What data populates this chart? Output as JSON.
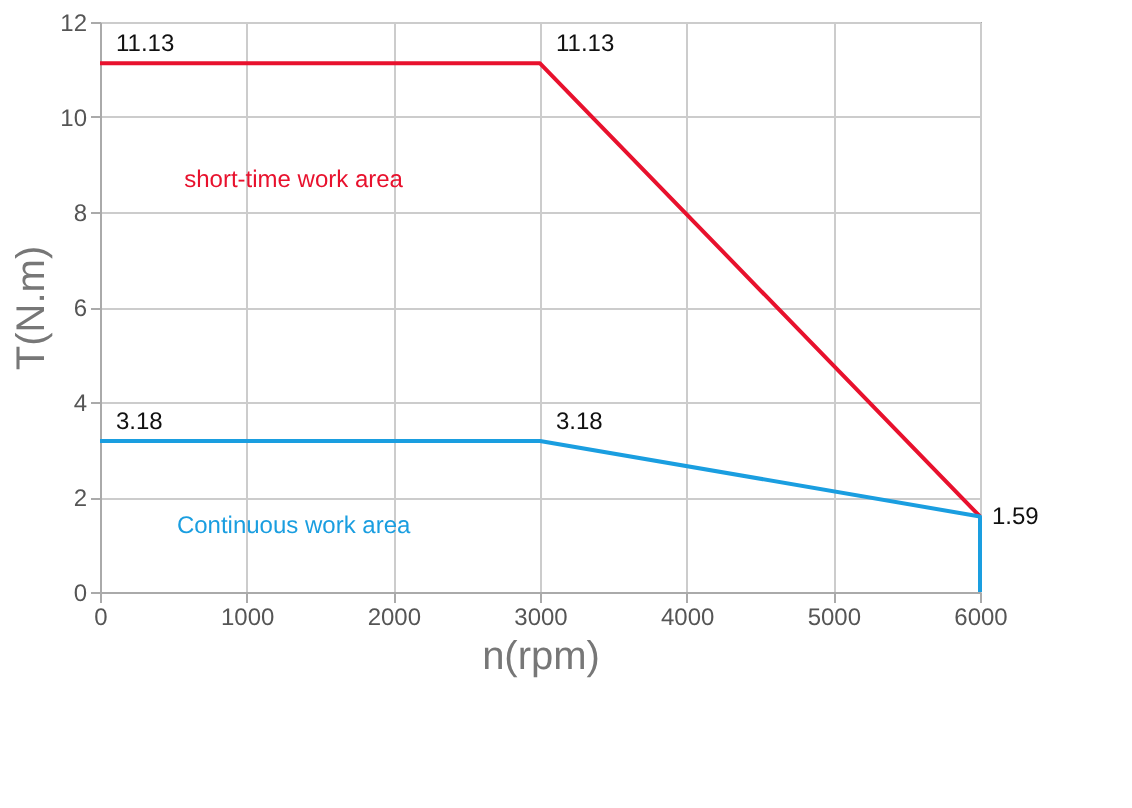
{
  "chart_data": {
    "type": "line",
    "xlabel": "n(rpm)",
    "ylabel": "T(N.m)",
    "x": [
      0,
      3000,
      6000
    ],
    "series": [
      {
        "name": "short-time work area",
        "color": "#e8112d",
        "values": [
          11.13,
          11.13,
          1.59
        ],
        "value_labels": [
          "11.13",
          "11.13",
          "1.59"
        ]
      },
      {
        "name": "Continuous work area",
        "color": "#1a9ee0",
        "x": [
          0,
          3000,
          6000,
          6000
        ],
        "values": [
          3.18,
          3.18,
          1.59,
          0
        ],
        "value_labels": [
          "3.18",
          "3.18",
          null,
          null
        ]
      }
    ],
    "xlim": [
      0,
      6000
    ],
    "xticks": [
      0,
      1000,
      2000,
      3000,
      4000,
      5000,
      6000
    ],
    "ylim": [
      0,
      12
    ],
    "yticks": [
      0,
      2,
      4,
      6,
      8,
      10,
      12
    ],
    "grid": true,
    "marker": "none",
    "line_style": "solid"
  }
}
